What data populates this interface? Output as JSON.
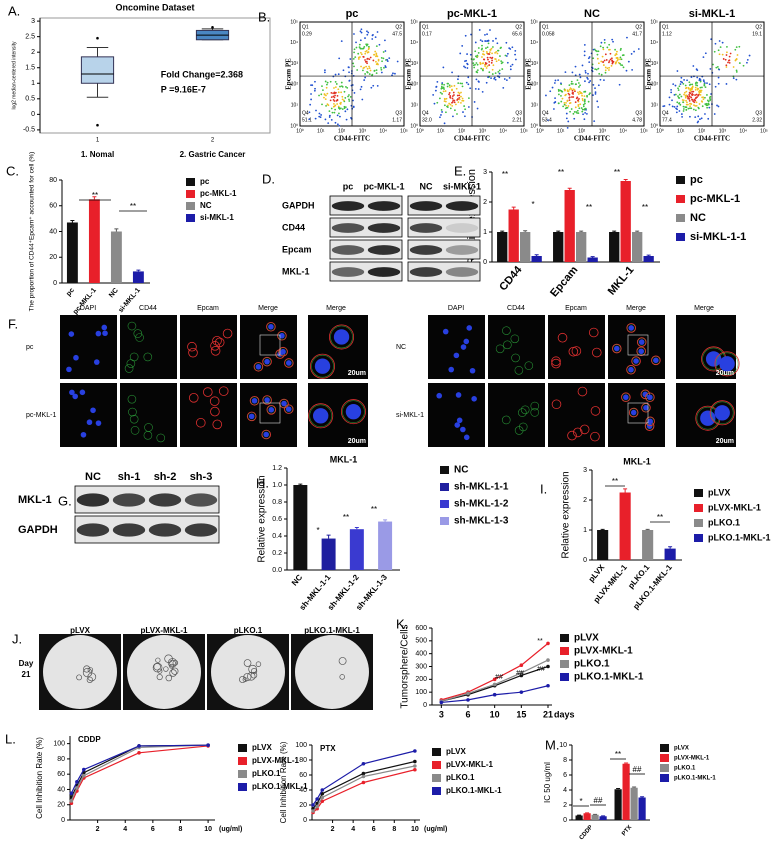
{
  "chart_data": [
    {
      "type": "box",
      "panel": "A.",
      "title": "Oncomine Dataset",
      "ylabel": "log2 median-centered intensity",
      "categories": [
        "1. Nomal",
        "2. Gastric Cancer"
      ],
      "sublabels": [
        "1",
        "2"
      ],
      "boxes": [
        {
          "min": 0.55,
          "q1": 1.0,
          "median": 1.3,
          "q3": 1.85,
          "max": 2.15,
          "outliers": [
            2.45,
            -0.35
          ]
        },
        {
          "min": 2.4,
          "q1": 2.4,
          "median": 2.55,
          "q3": 2.7,
          "max": 2.75,
          "outliers": [
            2.8
          ]
        }
      ],
      "color": "#b8d3ea",
      "ylim": [
        -0.6,
        3.1
      ],
      "yticks": [
        -0.5,
        0,
        0.5,
        1,
        1.5,
        2,
        2.5,
        3
      ],
      "annotations": [
        "Fold Change=2.368",
        "P =9.16E-7"
      ]
    },
    {
      "type": "bar",
      "panel": "C.",
      "ylabel": "The proportion of CD44⁺Epcam⁺ accounted for cell (%)",
      "categories": [
        "pc",
        "pc-MKL-1",
        "NC",
        "si-MKL-1"
      ],
      "values": [
        47,
        65,
        40,
        9
      ],
      "errors": [
        1.5,
        2,
        2,
        1
      ],
      "colors": [
        "#111111",
        "#e8202a",
        "#8a8a8a",
        "#1c1ca8"
      ],
      "ylim": [
        0,
        80
      ],
      "yticks": [
        0,
        20,
        40,
        60,
        80
      ],
      "annotations": [
        "**",
        "**"
      ]
    },
    {
      "type": "bar",
      "panel": "E.",
      "ylabel": "Relative expression",
      "categories": [
        "CD44",
        "Epcam",
        "MKL-1"
      ],
      "series": [
        {
          "name": "pc",
          "color": "#111111",
          "values": [
            1,
            1,
            1
          ],
          "errors": [
            0.03,
            0.03,
            0.03
          ]
        },
        {
          "name": "pc-MKL-1",
          "color": "#e8202a",
          "values": [
            1.75,
            2.4,
            2.7
          ],
          "errors": [
            0.08,
            0.06,
            0.05
          ]
        },
        {
          "name": "NC",
          "color": "#8a8a8a",
          "values": [
            1,
            1,
            1
          ],
          "errors": [
            0.04,
            0.03,
            0.03
          ]
        },
        {
          "name": "si-MKL-1-1",
          "color": "#1c1ca8",
          "values": [
            0.2,
            0.15,
            0.2
          ],
          "errors": [
            0.04,
            0.03,
            0.03
          ]
        }
      ],
      "ylim": [
        0,
        3
      ],
      "yticks": [
        0,
        1,
        2,
        3
      ],
      "annotations": [
        "**",
        "*",
        "**",
        "**",
        "**",
        "**"
      ]
    },
    {
      "type": "bar",
      "panel": "H.",
      "title": "MKL-1",
      "ylabel": "Relative expression",
      "categories": [
        "NC",
        "sh-MKL-1-1",
        "sh-MKL-1-2",
        "sh-MKL-1-3"
      ],
      "values": [
        1.0,
        0.37,
        0.48,
        0.57
      ],
      "errors": [
        0.01,
        0.04,
        0.02,
        0.02
      ],
      "colors": [
        "#111111",
        "#1f1f9f",
        "#3a3ad0",
        "#9a9ae6"
      ],
      "ylim": [
        0,
        1.2
      ],
      "yticks": [
        {
          "value": 0,
          "label": "0.0"
        },
        0.2,
        0.4,
        0.6,
        0.8,
        {
          "value": 1,
          "label": "1.0"
        },
        1.2
      ],
      "annotations": [
        "*",
        "**",
        "**"
      ]
    },
    {
      "type": "bar",
      "panel": "I.",
      "title": "MKL-1",
      "ylabel": "Relative expression",
      "categories": [
        "pLVX",
        "pLVX-MKL-1",
        "pLKO.1",
        "pLKO.1-MKL-1"
      ],
      "values": [
        1,
        2.25,
        1,
        0.38
      ],
      "errors": [
        0.02,
        0.12,
        0.02,
        0.06
      ],
      "colors": [
        "#111111",
        "#e8202a",
        "#8a8a8a",
        "#1c1ca8"
      ],
      "ylim": [
        0,
        3
      ],
      "yticks": [
        0,
        1,
        2,
        3
      ],
      "annotations": [
        "**",
        "**"
      ]
    },
    {
      "type": "line",
      "panel": "K.",
      "ylabel": "Tumorsphere/Cells",
      "xlabel": "days",
      "categories": [
        "3",
        "6",
        "10",
        "15",
        "21"
      ],
      "series": [
        {
          "name": "pLVX",
          "color": "#111111",
          "values": [
            30,
            80,
            150,
            230,
            300
          ]
        },
        {
          "name": "pLVX-MKL-1",
          "color": "#e8202a",
          "values": [
            40,
            100,
            200,
            310,
            480
          ]
        },
        {
          "name": "pLKO.1",
          "color": "#8a8a8a",
          "values": [
            30,
            90,
            160,
            250,
            350
          ]
        },
        {
          "name": "pLKO.1-MKL-1",
          "color": "#1c1ca8",
          "values": [
            20,
            40,
            80,
            100,
            150
          ]
        }
      ],
      "ylim": [
        0,
        600
      ],
      "yticks": [
        0,
        100,
        200,
        300,
        400,
        500,
        600
      ],
      "annotations": [
        "**",
        "##",
        "##",
        "##"
      ]
    },
    {
      "type": "line",
      "panel": "L.",
      "title": "CDDP",
      "ylabel": "Cell Inhibition Rate (%)",
      "x": [
        0.1,
        0.5,
        1,
        5,
        10
      ],
      "xlim": [
        0,
        10.5
      ],
      "xticks": [
        2,
        4,
        6,
        8,
        10
      ],
      "series": [
        {
          "name": "pLVX",
          "color": "#111111",
          "values": [
            30,
            45,
            62,
            97,
            98
          ]
        },
        {
          "name": "pLVX-MKL-1",
          "color": "#e8202a",
          "values": [
            22,
            38,
            55,
            88,
            97
          ]
        },
        {
          "name": "pLKO.1",
          "color": "#8a8a8a",
          "values": [
            25,
            42,
            58,
            95,
            98
          ]
        },
        {
          "name": "pLKO.1-MKL-1",
          "color": "#1c1ca8",
          "values": [
            35,
            50,
            66,
            97,
            98
          ]
        }
      ],
      "ylim": [
        0,
        110
      ],
      "yticks": [
        0,
        20,
        40,
        60,
        80,
        100
      ],
      "xlabel": "(ug/ml)"
    },
    {
      "type": "line",
      "title": "PTX",
      "ylabel": "Cell Inhibition Rate (%)",
      "x": [
        0.1,
        0.5,
        1,
        5,
        10
      ],
      "xlim": [
        0,
        10.5
      ],
      "xticks": [
        2,
        4,
        6,
        8,
        10
      ],
      "series": [
        {
          "name": "pLVX",
          "color": "#111111",
          "values": [
            15,
            22,
            35,
            62,
            78
          ]
        },
        {
          "name": "pLVX-MKL-1",
          "color": "#e8202a",
          "values": [
            10,
            15,
            25,
            50,
            67
          ]
        },
        {
          "name": "pLKO.1",
          "color": "#8a8a8a",
          "values": [
            12,
            18,
            30,
            58,
            72
          ]
        },
        {
          "name": "pLKO.1-MKL-1",
          "color": "#1c1ca8",
          "values": [
            20,
            28,
            40,
            75,
            92
          ]
        }
      ],
      "ylim": [
        0,
        100
      ],
      "yticks": [
        0,
        20,
        40,
        60,
        80,
        100
      ],
      "xlabel": "(ug/ml)"
    },
    {
      "type": "bar",
      "panel": "M.",
      "ylabel": "IC 50 ug/ml",
      "categories": [
        "CDDP",
        "PTX"
      ],
      "series": [
        {
          "name": "pLVX",
          "color": "#111111",
          "values": [
            0.6,
            4.1
          ],
          "errors": [
            0.05,
            0.1
          ]
        },
        {
          "name": "pLVX-MKL-1",
          "color": "#e8202a",
          "values": [
            0.9,
            7.5
          ],
          "errors": [
            0.05,
            0.1
          ]
        },
        {
          "name": "pLKO.1",
          "color": "#8a8a8a",
          "values": [
            0.7,
            4.3
          ],
          "errors": [
            0.05,
            0.1
          ]
        },
        {
          "name": "pLKO.1-MKL-1",
          "color": "#1c1ca8",
          "values": [
            0.5,
            3.0
          ],
          "errors": [
            0.05,
            0.1
          ]
        }
      ],
      "ylim": [
        0,
        10
      ],
      "yticks": [
        0,
        2,
        4,
        6,
        8,
        10
      ],
      "annotations": [
        "*",
        "##",
        "**",
        "##"
      ]
    }
  ],
  "flow": {
    "panel": "B.",
    "xlabel": "CD44-FITC",
    "ylabel": "Epcam PE",
    "quadrant_names": [
      "Q1",
      "Q2",
      "Q3",
      "Q4"
    ],
    "axis_ticks": [
      "10⁰",
      "10¹",
      "10²",
      "10³",
      "10⁴",
      "10⁵"
    ],
    "plots": [
      {
        "sample": "pc",
        "values": [
          "0.29",
          "47.5",
          "1.17",
          "51.1"
        ]
      },
      {
        "sample": "pc-MKL-1",
        "values": [
          "0.17",
          "65.6",
          "2.21",
          "32.0"
        ]
      },
      {
        "sample": "NC",
        "values": [
          "0.058",
          "41.7",
          "4.78",
          "53.4"
        ]
      },
      {
        "sample": "si-MKL-1",
        "values": [
          "1.12",
          "19.1",
          "2.32",
          "77.4"
        ]
      }
    ]
  },
  "blot_d": {
    "panel": "D.",
    "lanes": [
      "pc",
      "pc-MKL-1",
      "NC",
      "si-MKL-1"
    ],
    "rows": [
      "GAPDH",
      "CD44",
      "Epcam",
      "MKL-1"
    ]
  },
  "if_f": {
    "panel": "F.",
    "channels": [
      "DAPI",
      "CD44",
      "Epcam",
      "Merge",
      "Merge"
    ],
    "left_rows": [
      "pc",
      "pc-MKL-1"
    ],
    "right_rows": [
      "NC",
      "si-MKL-1"
    ],
    "scale": "20um"
  },
  "blot_g": {
    "panel": "G.",
    "lanes": [
      "NC",
      "sh-1",
      "sh-2",
      "sh-3"
    ],
    "rows": [
      "MKL-1",
      "GAPDH"
    ]
  },
  "spheres_j": {
    "panel": "J.",
    "labels": [
      "pLVX",
      "pLVX-MKL-1",
      "pLKO.1",
      "pLKO.1-MKL-1"
    ],
    "day": [
      "Day",
      "21"
    ]
  }
}
